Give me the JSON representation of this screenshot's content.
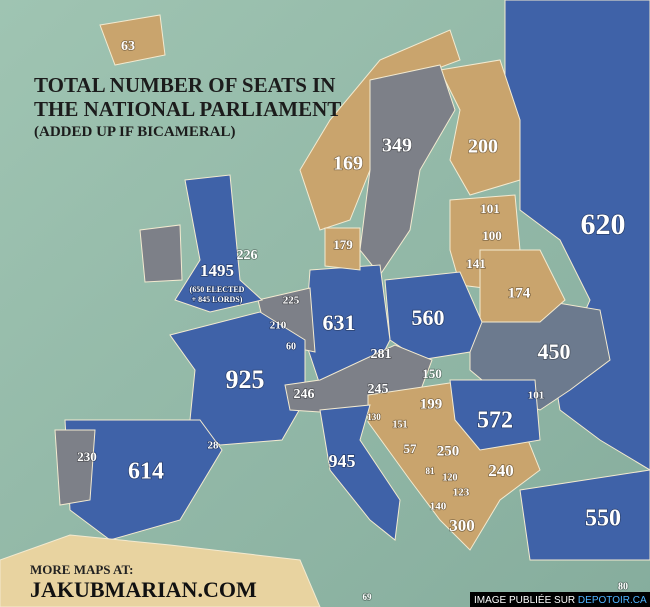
{
  "title": {
    "lines": [
      "TOTAL NUMBER OF SEATS IN",
      "THE NATIONAL PARLIAMENT"
    ],
    "note": "(ADDED UP IF BICAMERAL)"
  },
  "labels": [
    {
      "text": "63"
    },
    {
      "text": "169"
    },
    {
      "text": "349"
    },
    {
      "text": "200"
    },
    {
      "text": "620"
    },
    {
      "text": "101"
    },
    {
      "text": "100"
    },
    {
      "text": "141"
    },
    {
      "text": "174"
    },
    {
      "text": "179"
    },
    {
      "text": "226"
    },
    {
      "text": "1495",
      "note": [
        "(650 ELECTED",
        "+ 845 LORDS)"
      ]
    },
    {
      "text": "225"
    },
    {
      "text": "210"
    },
    {
      "text": "60"
    },
    {
      "text": "631"
    },
    {
      "text": "560"
    },
    {
      "text": "450"
    },
    {
      "text": "281"
    },
    {
      "text": "150"
    },
    {
      "text": "101"
    },
    {
      "text": "925"
    },
    {
      "text": "246"
    },
    {
      "text": "245"
    },
    {
      "text": "199"
    },
    {
      "text": "572"
    },
    {
      "text": "130"
    },
    {
      "text": "151"
    },
    {
      "text": "57"
    },
    {
      "text": "250"
    },
    {
      "text": "81"
    },
    {
      "text": "120"
    },
    {
      "text": "240"
    },
    {
      "text": "123"
    },
    {
      "text": "140"
    },
    {
      "text": "300"
    },
    {
      "text": "614"
    },
    {
      "text": "230"
    },
    {
      "text": "28"
    },
    {
      "text": "945"
    },
    {
      "text": "550"
    },
    {
      "text": "69"
    },
    {
      "text": "80"
    }
  ],
  "footer": {
    "more": "MORE MAPS AT:",
    "site": "JAKUBMARIAN.COM"
  },
  "credit": {
    "text": "IMAGE PUBLIÉE SUR",
    "link": "DEPOTOIR.CA"
  }
}
